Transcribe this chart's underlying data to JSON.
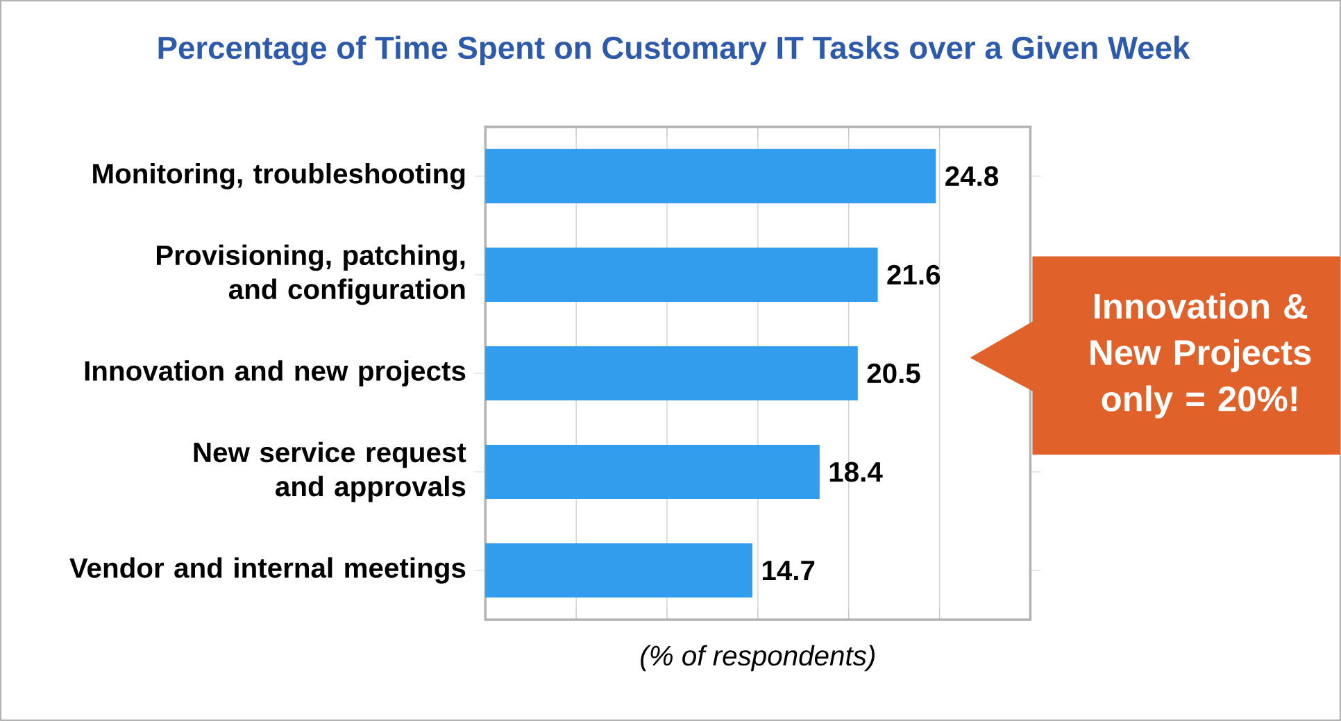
{
  "chart_data": {
    "type": "bar",
    "orientation": "horizontal",
    "title": "Percentage of Time Spent on Customary IT Tasks over a Given Week",
    "xlabel": "(% of respondents)",
    "categories": [
      "Monitoring, troubleshooting",
      "Provisioning, patching, and configuration",
      "Innovation and new projects",
      "New service request and approvals",
      "Vendor and internal meetings"
    ],
    "values": [
      24.8,
      21.6,
      20.5,
      18.4,
      14.7
    ],
    "color": "#339ded",
    "data_labels": true,
    "xlim": [
      0,
      30
    ],
    "xticks": [
      {
        "value": 0,
        "label": null
      },
      {
        "value": 5,
        "label": null
      },
      {
        "value": 10,
        "label": null
      },
      {
        "value": 15,
        "label": null
      },
      {
        "value": 20,
        "label": null
      },
      {
        "value": 25,
        "label": null
      },
      {
        "value": 30,
        "label": null
      }
    ],
    "tick_labels": "y",
    "grid": "x",
    "annotations": [
      "Innovation & New Projects only = 20%!"
    ]
  }
}
